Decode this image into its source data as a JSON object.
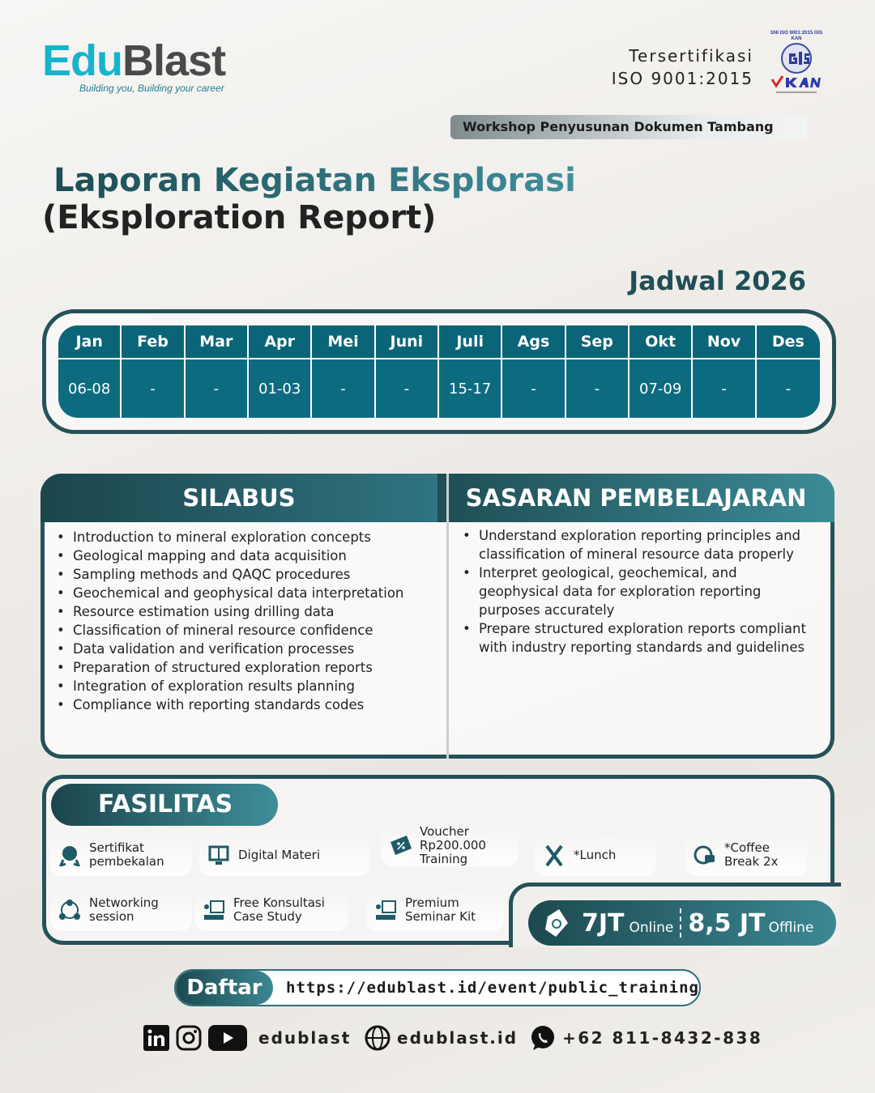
{
  "brand": {
    "logo_left": "Edu",
    "logo_right": "Blast",
    "tagline": "Building you, Building your career"
  },
  "certification": {
    "line1": "Tersertifikasi",
    "line2": "ISO 9001:2015",
    "badge_text": "SNI ISO 9001:2015 GIS KAN"
  },
  "workshop_label": "Workshop Penyusunan Dokumen Tambang",
  "title": {
    "line1": "Laporan Kegiatan Eksplorasi",
    "line2": "(Eksploration Report)"
  },
  "schedule": {
    "heading": "Jadwal 2026",
    "months": [
      "Jan",
      "Feb",
      "Mar",
      "Apr",
      "Mei",
      "Juni",
      "Juli",
      "Ags",
      "Sep",
      "Okt",
      "Nov",
      "Des"
    ],
    "dates": [
      "06-08",
      "-",
      "-",
      "01-03",
      "-",
      "-",
      "15-17",
      "-",
      "-",
      "07-09",
      "-",
      "-"
    ]
  },
  "silabus": {
    "title": "SILABUS",
    "items": [
      "Introduction to mineral exploration concepts",
      "Geological mapping and data acquisition",
      "Sampling methods and QAQC procedures",
      "Geochemical and geophysical data interpretation",
      "Resource estimation using drilling data",
      "Classification of mineral resource confidence",
      "Data validation and verification processes",
      "Preparation of structured exploration reports",
      "Integration of exploration results planning",
      "Compliance with reporting standards codes"
    ]
  },
  "sasaran": {
    "title": "SASARAN PEMBELAJARAN",
    "items": [
      "Understand exploration reporting principles and classification of mineral resource data properly",
      "Interpret geological, geochemical, and geophysical data for exploration reporting purposes accurately",
      "Prepare structured exploration reports compliant with industry reporting standards and guidelines"
    ]
  },
  "fasilitas": {
    "title": "FASILITAS",
    "items": [
      {
        "label": "Sertifikat pembekalan",
        "icon": "certificate-icon"
      },
      {
        "label": "Digital Materi",
        "icon": "digital-book-icon"
      },
      {
        "label": "Voucher Rp200.000 Training",
        "icon": "voucher-icon"
      },
      {
        "label": "*Lunch",
        "icon": "utensils-icon"
      },
      {
        "label": "*Coffee Break 2x",
        "icon": "coffee-clock-icon"
      },
      {
        "label": "Networking session",
        "icon": "network-icon"
      },
      {
        "label": "Free Konsultasi Case Study",
        "icon": "presentation-icon"
      },
      {
        "label": "Premium Seminar Kit",
        "icon": "presentation-icon"
      }
    ]
  },
  "price": {
    "online_price": "7JT",
    "online_label": "Online",
    "offline_price": "8,5 JT",
    "offline_label": "Offline"
  },
  "register": {
    "button": "Daftar",
    "url": "https://edublast.id/event/public_training"
  },
  "contacts": {
    "social_handle": "edublast",
    "website": "edublast.id",
    "phone": "+62 811-8432-838"
  },
  "colors": {
    "primary": "#25525a",
    "table": "#0d6b80",
    "accent": "#3b8893",
    "logo_cyan": "#17b3cc"
  }
}
